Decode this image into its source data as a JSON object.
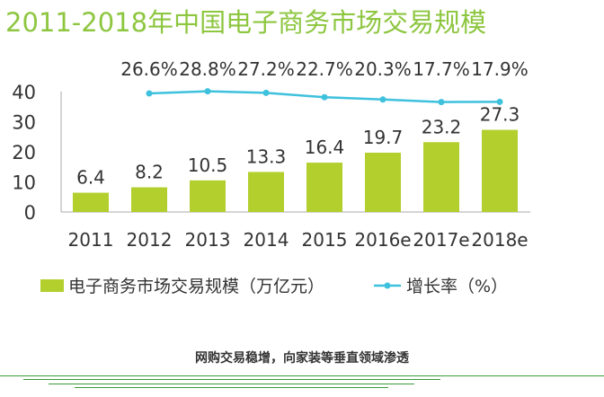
{
  "chart_data": {
    "type": "bar",
    "title": "2011-2018年中国电子商务市场交易规模",
    "categories": [
      "2011",
      "2012",
      "2013",
      "2014",
      "2015",
      "2016e",
      "2017e",
      "2018e"
    ],
    "series": [
      {
        "name": "电子商务市场交易规模（万亿元）",
        "type": "bar",
        "values": [
          6.4,
          8.2,
          10.5,
          13.3,
          16.4,
          19.7,
          23.2,
          27.3
        ],
        "labels": [
          "6.4",
          "8.2",
          "10.5",
          "13.3",
          "16.4",
          "19.7",
          "23.2",
          "27.3"
        ]
      },
      {
        "name": "增长率（%）",
        "type": "line",
        "values": [
          null,
          26.6,
          28.8,
          27.2,
          22.7,
          20.3,
          17.7,
          17.9
        ],
        "labels": [
          "",
          "26.6%",
          "28.8%",
          "27.2%",
          "22.7%",
          "20.3%",
          "17.7%",
          "17.9%"
        ]
      }
    ],
    "yticks": [
      "0",
      "10",
      "20",
      "30",
      "40"
    ],
    "ylim": [
      0,
      40
    ],
    "legend": "bottom",
    "colors": {
      "bar": "#b3cf2e",
      "line": "#3ec1dd",
      "title": "#8dc63f"
    }
  },
  "caption": "网购交易稳增，向家装等垂直领域渗透"
}
